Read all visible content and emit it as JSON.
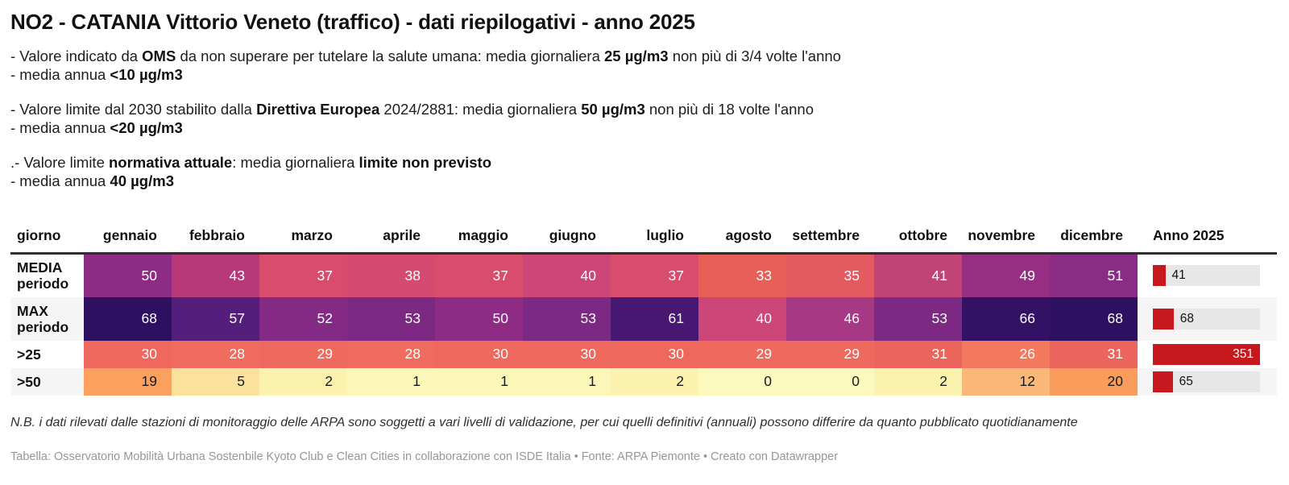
{
  "title": "NO2 - CATANIA Vittorio Veneto (traffico) - dati riepilogativi - anno 2025",
  "notes": [
    {
      "lines": [
        {
          "segments": [
            {
              "t": "- Valore indicato da "
            },
            {
              "t": "OMS",
              "b": true
            },
            {
              "t": " da non superare per tutelare la salute umana: media giornaliera "
            },
            {
              "t": "25 µg/m3",
              "b": true
            },
            {
              "t": " non più di 3/4 volte l'anno"
            }
          ]
        },
        {
          "segments": [
            {
              "t": "- media annua "
            },
            {
              "t": "<10 µg/m3",
              "b": true
            }
          ]
        }
      ]
    },
    {
      "lines": [
        {
          "segments": [
            {
              "t": "- Valore limite dal 2030 stabilito dalla "
            },
            {
              "t": "Direttiva Europea",
              "b": true
            },
            {
              "t": " 2024/2881: media giornaliera "
            },
            {
              "t": "50 µg/m3",
              "b": true
            },
            {
              "t": " non più di 18 volte l'anno"
            }
          ]
        },
        {
          "segments": [
            {
              "t": "- media annua "
            },
            {
              "t": "<20 µg/m3",
              "b": true
            }
          ]
        }
      ]
    },
    {
      "lines": [
        {
          "segments": [
            {
              "t": ".- Valore limite "
            },
            {
              "t": "normativa attuale",
              "b": true
            },
            {
              "t": ": media giornaliera "
            },
            {
              "t": "limite non previsto",
              "b": true
            }
          ]
        },
        {
          "segments": [
            {
              "t": "- media annua "
            },
            {
              "t": "40 µg/m3",
              "b": true
            }
          ]
        }
      ]
    }
  ],
  "colors": {
    "bar_red": "#c7191d",
    "bar_track": "#e7e7e7",
    "zebra": "#f5f5f5",
    "header_rule": "#2e2e2e"
  },
  "table": {
    "columns": [
      "giorno",
      "gennaio",
      "febbraio",
      "marzo",
      "aprile",
      "maggio",
      "giugno",
      "luglio",
      "agosto",
      "settembre",
      "ottobre",
      "novembre",
      "dicembre",
      "Anno 2025"
    ],
    "rows": [
      {
        "label": "MEDIA periodo",
        "cells": [
          {
            "v": "50",
            "bg": "#8e2c85",
            "fg": "#ffffff"
          },
          {
            "v": "43",
            "bg": "#b73779",
            "fg": "#ffffff"
          },
          {
            "v": "37",
            "bg": "#d94d6c",
            "fg": "#ffffff"
          },
          {
            "v": "38",
            "bg": "#d44a70",
            "fg": "#ffffff"
          },
          {
            "v": "37",
            "bg": "#d94d6c",
            "fg": "#ffffff"
          },
          {
            "v": "40",
            "bg": "#cc4778",
            "fg": "#ffffff"
          },
          {
            "v": "37",
            "bg": "#d94d6c",
            "fg": "#ffffff"
          },
          {
            "v": "33",
            "bg": "#e85f58",
            "fg": "#ffffff"
          },
          {
            "v": "35",
            "bg": "#e35a61",
            "fg": "#ffffff"
          },
          {
            "v": "41",
            "bg": "#c24376",
            "fg": "#ffffff"
          },
          {
            "v": "49",
            "bg": "#962f83",
            "fg": "#ffffff"
          },
          {
            "v": "51",
            "bg": "#8a2b86",
            "fg": "#ffffff"
          }
        ],
        "bar": {
          "value": 41,
          "label": "41",
          "width": "11.7%",
          "label_class": "bar-label"
        }
      },
      {
        "label": "MAX periodo",
        "cells": [
          {
            "v": "68",
            "bg": "#2d1160",
            "fg": "#ffffff"
          },
          {
            "v": "57",
            "bg": "#541f7c",
            "fg": "#ffffff"
          },
          {
            "v": "52",
            "bg": "#832b84",
            "fg": "#ffffff"
          },
          {
            "v": "53",
            "bg": "#7b2982",
            "fg": "#ffffff"
          },
          {
            "v": "50",
            "bg": "#8e2c85",
            "fg": "#ffffff"
          },
          {
            "v": "53",
            "bg": "#7b2982",
            "fg": "#ffffff"
          },
          {
            "v": "61",
            "bg": "#471771",
            "fg": "#ffffff"
          },
          {
            "v": "40",
            "bg": "#cc4778",
            "fg": "#ffffff"
          },
          {
            "v": "46",
            "bg": "#a63884",
            "fg": "#ffffff"
          },
          {
            "v": "53",
            "bg": "#7b2982",
            "fg": "#ffffff"
          },
          {
            "v": "66",
            "bg": "#331265",
            "fg": "#ffffff"
          },
          {
            "v": "68",
            "bg": "#2d1160",
            "fg": "#ffffff"
          }
        ],
        "bar": {
          "value": 68,
          "label": "68",
          "width": "19.4%",
          "label_class": "bar-label"
        }
      },
      {
        "label": ">25",
        "cells": [
          {
            "v": "30",
            "bg": "#ee685e",
            "fg": "#ffffff"
          },
          {
            "v": "28",
            "bg": "#f06c5e",
            "fg": "#ffffff"
          },
          {
            "v": "29",
            "bg": "#ef6a5e",
            "fg": "#ffffff"
          },
          {
            "v": "28",
            "bg": "#f06c5e",
            "fg": "#ffffff"
          },
          {
            "v": "30",
            "bg": "#ee685e",
            "fg": "#ffffff"
          },
          {
            "v": "30",
            "bg": "#ee685e",
            "fg": "#ffffff"
          },
          {
            "v": "30",
            "bg": "#ee685e",
            "fg": "#ffffff"
          },
          {
            "v": "29",
            "bg": "#ef6a5e",
            "fg": "#ffffff"
          },
          {
            "v": "29",
            "bg": "#ef6a5e",
            "fg": "#ffffff"
          },
          {
            "v": "31",
            "bg": "#ec655d",
            "fg": "#ffffff"
          },
          {
            "v": "26",
            "bg": "#f4795f",
            "fg": "#ffffff"
          },
          {
            "v": "31",
            "bg": "#ec655d",
            "fg": "#ffffff"
          }
        ],
        "bar": {
          "value": 351,
          "label": "351",
          "width": "100%",
          "label_class": "bar-label inside"
        }
      },
      {
        "label": ">50",
        "cells": [
          {
            "v": "19",
            "bg": "#fba05e",
            "fg": "#1a1a1a"
          },
          {
            "v": "5",
            "bg": "#fbe39e",
            "fg": "#1a1a1a"
          },
          {
            "v": "2",
            "bg": "#faf2ae",
            "fg": "#1a1a1a"
          },
          {
            "v": "1",
            "bg": "#fbf7b8",
            "fg": "#1a1a1a"
          },
          {
            "v": "1",
            "bg": "#fbf7b8",
            "fg": "#1a1a1a"
          },
          {
            "v": "1",
            "bg": "#fbf7b8",
            "fg": "#1a1a1a"
          },
          {
            "v": "2",
            "bg": "#faf2ae",
            "fg": "#1a1a1a"
          },
          {
            "v": "0",
            "bg": "#fbf9bd",
            "fg": "#1a1a1a"
          },
          {
            "v": "0",
            "bg": "#fbf9bd",
            "fg": "#1a1a1a"
          },
          {
            "v": "2",
            "bg": "#faf2ae",
            "fg": "#1a1a1a"
          },
          {
            "v": "12",
            "bg": "#fbb878",
            "fg": "#1a1a1a"
          },
          {
            "v": "20",
            "bg": "#fa9d5c",
            "fg": "#1a1a1a"
          }
        ],
        "bar": {
          "value": 65,
          "label": "65",
          "width": "18.5%",
          "label_class": "bar-label"
        }
      }
    ]
  },
  "footer": {
    "nb": "N.B. i dati rilevati dalle stazioni di monitoraggio delle ARPA sono soggetti a vari livelli di validazione, per cui quelli definitivi (annuali) possono differire da quanto pubblicato quotidianamente",
    "attribution": "Tabella: Osservatorio Mobilità Urbana Sostenbile Kyoto Club e Clean Cities in collaborazione con ISDE Italia • Fonte: ARPA Piemonte • Creato con Datawrapper"
  },
  "chart_data": {
    "type": "heatmap",
    "title": "NO2 - CATANIA Vittorio Veneto (traffico) - dati riepilogativi - anno 2025",
    "unit": "µg/m3",
    "categories": [
      "gennaio",
      "febbraio",
      "marzo",
      "aprile",
      "maggio",
      "giugno",
      "luglio",
      "agosto",
      "settembre",
      "ottobre",
      "novembre",
      "dicembre"
    ],
    "series": [
      {
        "name": "MEDIA periodo",
        "values": [
          50,
          43,
          37,
          38,
          37,
          40,
          37,
          33,
          35,
          41,
          49,
          51
        ],
        "anno_2025": 41
      },
      {
        "name": "MAX periodo",
        "values": [
          68,
          57,
          52,
          53,
          50,
          53,
          61,
          40,
          46,
          53,
          66,
          68
        ],
        "anno_2025": 68
      },
      {
        "name": ">25",
        "values": [
          30,
          28,
          29,
          28,
          30,
          30,
          30,
          29,
          29,
          31,
          26,
          31
        ],
        "anno_2025": 351
      },
      {
        "name": ">50",
        "values": [
          19,
          5,
          2,
          1,
          1,
          1,
          2,
          0,
          0,
          2,
          12,
          20
        ],
        "anno_2025": 65
      }
    ],
    "anno_bar_max": 351,
    "legend_position": "none",
    "color_scale": "reversed-magma (pale yellow = low, dark purple = high)"
  }
}
